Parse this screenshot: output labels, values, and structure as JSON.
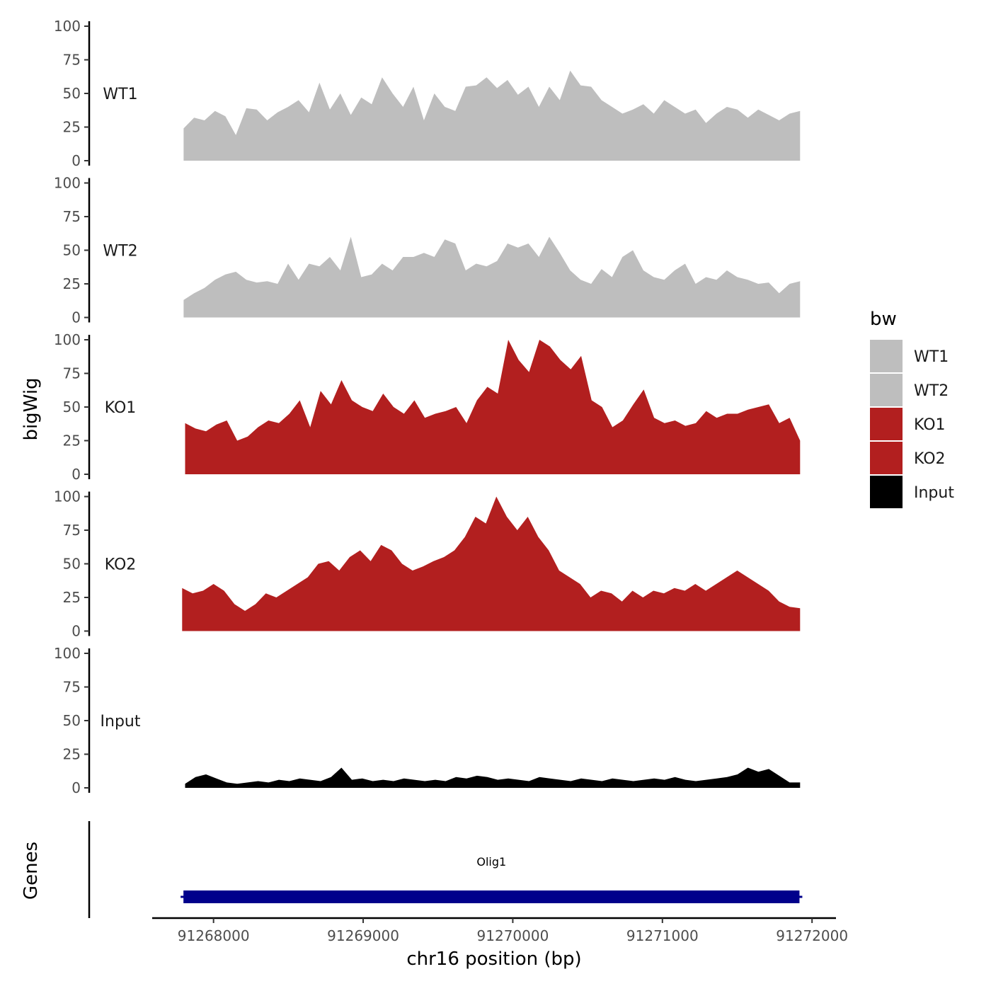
{
  "chart_data": {
    "type": "area",
    "ylabel": "bigWig",
    "xlabel": "chr16 position (bp)",
    "genes_label": "Genes",
    "x_range": [
      91267800,
      91271920
    ],
    "xlim": [
      91267590,
      91272160
    ],
    "x_ticks": [
      91268000,
      91269000,
      91270000,
      91271000,
      91272000
    ],
    "x_tick_labels": [
      "91268000",
      "91269000",
      "91270000",
      "91271000",
      "91272000"
    ],
    "ylim": [
      0,
      100
    ],
    "y_ticks": [
      0,
      25,
      50,
      75,
      100
    ],
    "y_tick_labels": [
      "0",
      "25",
      "50",
      "75",
      "100"
    ],
    "grid": false,
    "legend": {
      "title": "bw",
      "position": "right",
      "entries": [
        {
          "label": "WT1",
          "color": "#bebebe"
        },
        {
          "label": "WT2",
          "color": "#bebebe"
        },
        {
          "label": "KO1",
          "color": "#b21f1f"
        },
        {
          "label": "KO2",
          "color": "#b21f1f"
        },
        {
          "label": "Input",
          "color": "#000000"
        }
      ]
    },
    "series": [
      {
        "name": "WT1",
        "color": "#bebebe",
        "x_start": 91267800,
        "x_end": 91271920,
        "values": [
          24,
          32,
          30,
          37,
          33,
          19,
          39,
          38,
          30,
          36,
          40,
          45,
          36,
          58,
          38,
          50,
          34,
          47,
          42,
          62,
          50,
          40,
          55,
          30,
          50,
          40,
          37,
          55,
          56,
          62,
          54,
          60,
          49,
          55,
          40,
          55,
          45,
          67,
          56,
          55,
          45,
          40,
          35,
          38,
          42,
          35,
          45,
          40,
          35,
          38,
          28,
          35,
          40,
          38,
          32,
          38,
          34,
          30,
          35,
          37
        ]
      },
      {
        "name": "WT2",
        "color": "#bebebe",
        "x_start": 91267800,
        "x_end": 91271920,
        "values": [
          13,
          18,
          22,
          28,
          32,
          34,
          28,
          26,
          27,
          25,
          40,
          28,
          40,
          38,
          45,
          35,
          60,
          30,
          32,
          40,
          35,
          45,
          45,
          48,
          45,
          58,
          55,
          35,
          40,
          38,
          42,
          55,
          52,
          55,
          45,
          60,
          48,
          35,
          28,
          25,
          36,
          30,
          45,
          50,
          35,
          30,
          28,
          35,
          40,
          25,
          30,
          28,
          35,
          30,
          28,
          25,
          26,
          18,
          25,
          27
        ]
      },
      {
        "name": "KO1",
        "color": "#b21f1f",
        "x_start": 91267810,
        "x_end": 91271920,
        "values": [
          38,
          34,
          32,
          37,
          40,
          25,
          28,
          35,
          40,
          38,
          45,
          55,
          35,
          62,
          52,
          70,
          55,
          50,
          47,
          60,
          50,
          45,
          55,
          42,
          45,
          47,
          50,
          38,
          55,
          65,
          60,
          100,
          85,
          76,
          100,
          95,
          85,
          78,
          88,
          55,
          50,
          35,
          40,
          52,
          63,
          42,
          38,
          40,
          36,
          38,
          47,
          42,
          45,
          45,
          48,
          50,
          52,
          38,
          42,
          25
        ]
      },
      {
        "name": "KO2",
        "color": "#b21f1f",
        "x_start": 91267790,
        "x_end": 91271920,
        "values": [
          32,
          28,
          30,
          35,
          30,
          20,
          15,
          20,
          28,
          25,
          30,
          35,
          40,
          50,
          52,
          45,
          55,
          60,
          52,
          64,
          60,
          50,
          45,
          48,
          52,
          55,
          60,
          70,
          85,
          80,
          100,
          85,
          75,
          85,
          70,
          60,
          45,
          40,
          35,
          25,
          30,
          28,
          22,
          30,
          25,
          30,
          28,
          32,
          30,
          35,
          30,
          35,
          40,
          45,
          40,
          35,
          30,
          22,
          18,
          17
        ]
      },
      {
        "name": "Input",
        "color": "#000000",
        "x_start": 91267810,
        "x_end": 91271920,
        "values": [
          3,
          8,
          10,
          7,
          4,
          3,
          4,
          5,
          4,
          6,
          5,
          7,
          6,
          5,
          8,
          15,
          6,
          7,
          5,
          6,
          5,
          7,
          6,
          5,
          6,
          5,
          8,
          7,
          9,
          8,
          6,
          7,
          6,
          5,
          8,
          7,
          6,
          5,
          7,
          6,
          5,
          7,
          6,
          5,
          6,
          7,
          6,
          8,
          6,
          5,
          6,
          7,
          8,
          10,
          15,
          12,
          14,
          9,
          4,
          4
        ]
      }
    ],
    "genes": [
      {
        "name": "Olig1",
        "start": 91267780,
        "end": 91271935,
        "color": "#00008b"
      }
    ]
  }
}
